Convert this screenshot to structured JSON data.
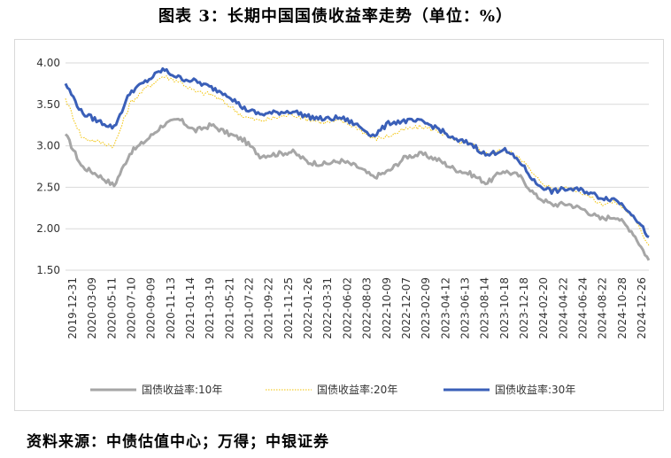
{
  "title": "图表 3：长期中国国债收益率走势（单位：%）",
  "source": "资料来源：中债估值中心；万得；中银证券",
  "chart_data": {
    "type": "line",
    "title": "",
    "xlabel": "",
    "ylabel": "",
    "ylim": [
      1.5,
      4.0
    ],
    "yticks": [
      "1.50",
      "2.00",
      "2.50",
      "3.00",
      "3.50",
      "4.00"
    ],
    "grid": "horizontal",
    "legend": "bottom",
    "x_tick_labels": [
      "2019-12-31",
      "2020-03-09",
      "2020-05-11",
      "2020-07-10",
      "2020-09-09",
      "2020-11-13",
      "2021-01-14",
      "2021-03-19",
      "2021-05-21",
      "2021-07-22",
      "2021-09-22",
      "2021-11-25",
      "2022-01-26",
      "2022-03-31",
      "2022-06-02",
      "2022-08-03",
      "2022-10-09",
      "2022-12-07",
      "2023-02-09",
      "2023-04-12",
      "2023-06-13",
      "2023-08-14",
      "2023-10-18",
      "2023-12-18",
      "2024-02-20",
      "2024-04-22",
      "2024-06-24",
      "2024-08-22",
      "2024-10-28",
      "2024-12-26"
    ],
    "series": [
      {
        "name": "国债收益率:10年",
        "color": "#a6a6a6",
        "style": "solid",
        "values": [
          3.14,
          2.75,
          2.65,
          2.52,
          2.92,
          3.07,
          3.25,
          3.32,
          3.18,
          3.25,
          3.15,
          3.07,
          2.88,
          2.9,
          2.93,
          2.8,
          2.78,
          2.82,
          2.75,
          2.62,
          2.7,
          2.87,
          2.9,
          2.83,
          2.72,
          2.66,
          2.55,
          2.7,
          2.64,
          2.4,
          2.29,
          2.3,
          2.23,
          2.12,
          2.15,
          1.96,
          1.62
        ]
      },
      {
        "name": "国债收益率:20年",
        "color": "#f2c200",
        "style": "dotted",
        "values": [
          3.57,
          3.1,
          3.05,
          3.0,
          3.52,
          3.7,
          3.84,
          3.78,
          3.65,
          3.62,
          3.5,
          3.35,
          3.3,
          3.34,
          3.38,
          3.32,
          3.28,
          3.3,
          3.22,
          3.08,
          3.12,
          3.2,
          3.23,
          3.18,
          3.06,
          3.02,
          2.9,
          2.95,
          2.88,
          2.62,
          2.48,
          2.5,
          2.43,
          2.3,
          2.32,
          2.15,
          1.8
        ]
      },
      {
        "name": "国债收益率:30年",
        "color": "#3a5fb8",
        "style": "solid",
        "values": [
          3.75,
          3.4,
          3.3,
          3.22,
          3.65,
          3.78,
          3.92,
          3.82,
          3.78,
          3.7,
          3.62,
          3.45,
          3.38,
          3.4,
          3.42,
          3.35,
          3.32,
          3.34,
          3.25,
          3.12,
          3.28,
          3.3,
          3.29,
          3.21,
          3.07,
          3.03,
          2.88,
          2.96,
          2.82,
          2.55,
          2.45,
          2.48,
          2.46,
          2.38,
          2.35,
          2.18,
          1.9
        ]
      }
    ]
  }
}
